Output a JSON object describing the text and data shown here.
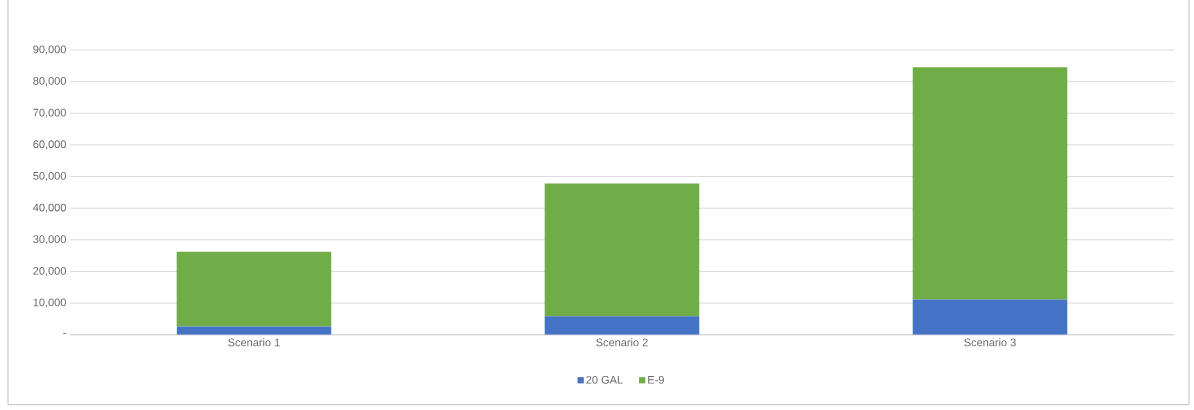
{
  "chart_data": {
    "type": "bar",
    "stacked": true,
    "categories": [
      "Scenario 1",
      "Scenario 2",
      "Scenario 3"
    ],
    "series": [
      {
        "name": "20 GAL",
        "color": "#4472c4",
        "values": [
          2600,
          5800,
          11100
        ]
      },
      {
        "name": "E-9",
        "color": "#70ad47",
        "values": [
          23600,
          42000,
          73400
        ]
      }
    ],
    "ylim": [
      0,
      90000
    ],
    "yticks": [
      {
        "value": 0,
        "label": "-"
      },
      {
        "value": 10000,
        "label": "10,000"
      },
      {
        "value": 20000,
        "label": "20,000"
      },
      {
        "value": 30000,
        "label": "30,000"
      },
      {
        "value": 40000,
        "label": "40,000"
      },
      {
        "value": 50000,
        "label": "50,000"
      },
      {
        "value": 60000,
        "label": "60,000"
      },
      {
        "value": 70000,
        "label": "70,000"
      },
      {
        "value": 80000,
        "label": "80,000"
      },
      {
        "value": 90000,
        "label": "90,000"
      }
    ],
    "grid": "y",
    "legend": "bottom"
  }
}
